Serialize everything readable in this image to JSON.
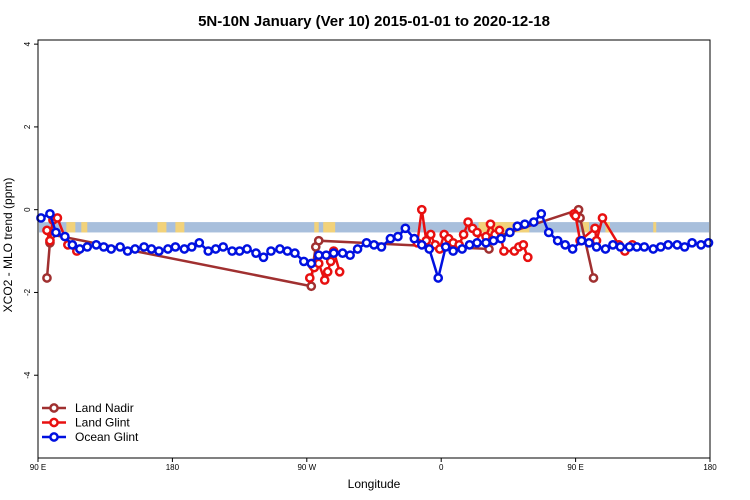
{
  "chart_data": {
    "type": "line",
    "title": "5N-10N January (Ver 10)   2015-01-01 to 2020-12-18",
    "xlabel": "Longitude",
    "ylabel": "XCO2 - MLO trend (ppm)",
    "xlim": [
      -90,
      360
    ],
    "ylim": [
      -6,
      4.1
    ],
    "x_ticks": [
      {
        "value": -90,
        "label": "90 E"
      },
      {
        "value": 0,
        "label": "180"
      },
      {
        "value": 90,
        "label": "90 W"
      },
      {
        "value": 180,
        "label": "0"
      },
      {
        "value": 270,
        "label": "90 E"
      },
      {
        "value": 360,
        "label": "180"
      }
    ],
    "y_ticks": [
      -4,
      -2,
      0,
      2,
      4
    ],
    "legend_position": "bottom-left",
    "band": {
      "y_low": -0.55,
      "y_high": -0.3,
      "color": "#a8bfdc",
      "land_color": "#f2d27a"
    },
    "land_segments": [
      [
        -71,
        -65
      ],
      [
        -61,
        -58
      ],
      [
        -59,
        -57
      ],
      [
        -10,
        -4
      ],
      [
        2,
        8
      ],
      [
        95,
        98
      ],
      [
        101,
        109
      ],
      [
        205,
        239
      ],
      [
        274,
        279
      ],
      [
        290,
        293
      ],
      [
        322,
        324
      ]
    ],
    "series": [
      {
        "name": "Land Nadir",
        "color": "#a03030",
        "x": [
          -84,
          -82,
          -81,
          93,
          94,
          96,
          98,
          212,
          213,
          272,
          273,
          282
        ],
        "values": [
          -1.65,
          -0.8,
          -0.6,
          -1.85,
          -1.35,
          -0.9,
          -0.75,
          -0.95,
          -0.7,
          0.0,
          -0.2,
          -1.65
        ]
      },
      {
        "name": "Land Glint",
        "color": "#e81010",
        "x": [
          -84,
          -82,
          -80,
          -77,
          -70,
          -64,
          92,
          95,
          98,
          102,
          104,
          106,
          108,
          112,
          164,
          167,
          170,
          173,
          176,
          179,
          182,
          185,
          188,
          192,
          195,
          198,
          201,
          204,
          207,
          210,
          213,
          216,
          219,
          222,
          229,
          232,
          235,
          238,
          269,
          270,
          273,
          283,
          284,
          288,
          299,
          303,
          308
        ],
        "values": [
          -0.5,
          -0.75,
          -0.25,
          -0.2,
          -0.85,
          -1.0,
          -1.65,
          -1.4,
          -1.3,
          -1.7,
          -1.5,
          -1.25,
          -1.0,
          -1.5,
          -0.8,
          0.0,
          -0.75,
          -0.6,
          -0.85,
          -0.95,
          -0.6,
          -0.7,
          -0.8,
          -0.85,
          -0.6,
          -0.3,
          -0.45,
          -0.55,
          -0.7,
          -0.65,
          -0.35,
          -0.6,
          -0.5,
          -1.0,
          -1.0,
          -0.9,
          -0.85,
          -1.15,
          -0.1,
          -0.15,
          -0.75,
          -0.45,
          -0.75,
          -0.2,
          -0.85,
          -1.0,
          -0.85
        ],
        "break_after_index": [
          5,
          13,
          37
        ]
      },
      {
        "name": "Ocean Glint",
        "color": "#0010e0",
        "x": [
          -88,
          -82,
          -78,
          -72,
          -67,
          -62,
          -57,
          -51,
          -46,
          -41,
          -35,
          -30,
          -25,
          -19,
          -14,
          -9,
          -3,
          2,
          8,
          13,
          18,
          24,
          29,
          34,
          40,
          45,
          50,
          56,
          61,
          66,
          72,
          77,
          82,
          88,
          93,
          98,
          103,
          108,
          114,
          119,
          124,
          130,
          135,
          140,
          146,
          151,
          156,
          162,
          167,
          172,
          178,
          183,
          188,
          194,
          199,
          204,
          210,
          215,
          220,
          226,
          231,
          236,
          242,
          247,
          252,
          258,
          263,
          268,
          274,
          279,
          284,
          290,
          295,
          300,
          306,
          311,
          316,
          322,
          327,
          332,
          338,
          343,
          348,
          354,
          359
        ],
        "values": [
          -0.2,
          -0.1,
          -0.55,
          -0.65,
          -0.85,
          -0.95,
          -0.9,
          -0.85,
          -0.9,
          -0.95,
          -0.9,
          -1.0,
          -0.95,
          -0.9,
          -0.95,
          -1.0,
          -0.95,
          -0.9,
          -0.95,
          -0.9,
          -0.8,
          -1.0,
          -0.95,
          -0.9,
          -1.0,
          -1.0,
          -0.95,
          -1.05,
          -1.15,
          -1.0,
          -0.95,
          -1.0,
          -1.05,
          -1.25,
          -1.3,
          -1.1,
          -1.1,
          -1.05,
          -1.05,
          -1.1,
          -0.95,
          -0.8,
          -0.85,
          -0.9,
          -0.7,
          -0.65,
          -0.45,
          -0.7,
          -0.85,
          -0.95,
          -1.65,
          -0.9,
          -1.0,
          -0.95,
          -0.85,
          -0.8,
          -0.8,
          -0.75,
          -0.7,
          -0.55,
          -0.4,
          -0.35,
          -0.3,
          -0.1,
          -0.55,
          -0.75,
          -0.85,
          -0.95,
          -0.75,
          -0.8,
          -0.9,
          -0.95,
          -0.85,
          -0.9,
          -0.9,
          -0.9,
          -0.9,
          -0.95,
          -0.9,
          -0.85,
          -0.85,
          -0.9,
          -0.8,
          -0.85,
          -0.8
        ]
      }
    ]
  }
}
